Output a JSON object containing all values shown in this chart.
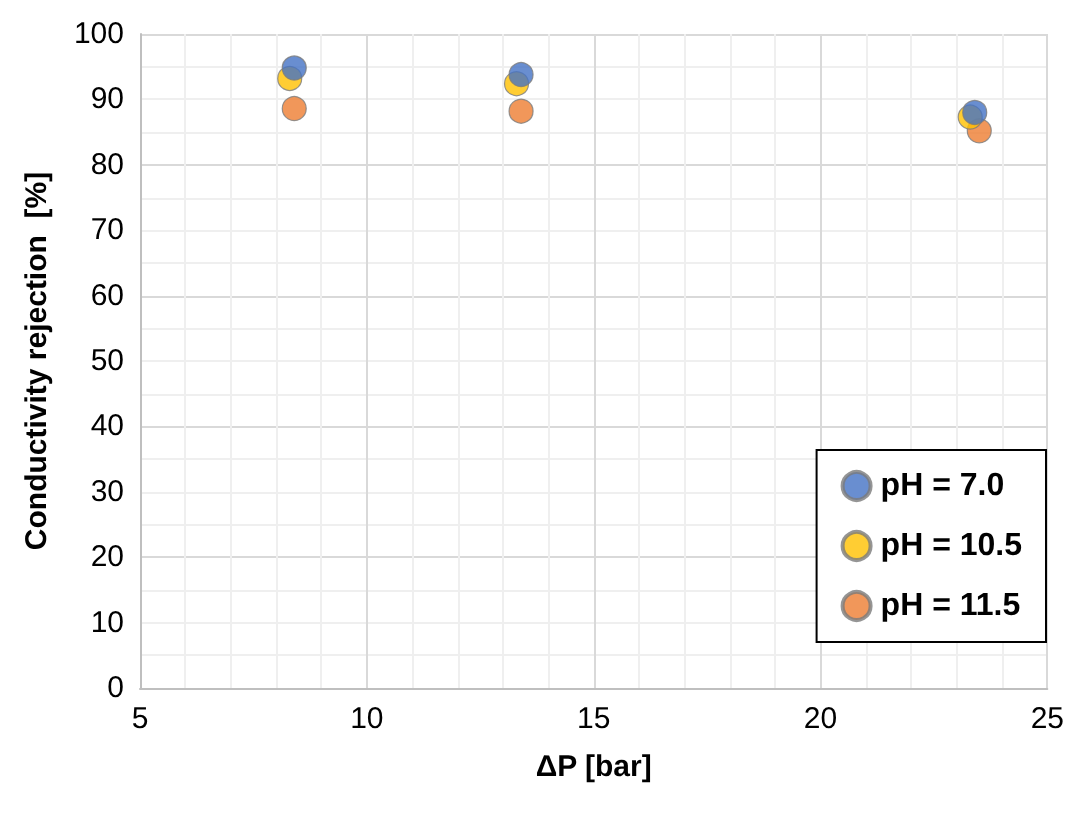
{
  "chart_data": {
    "type": "scatter",
    "xlabel": "ΔP [bar]",
    "ylabel": "Conductivity rejection  [%]",
    "series": [
      {
        "name": "pH = 7.0",
        "color": "#4472c4",
        "x": [
          8.4,
          13.4,
          23.4
        ],
        "values": [
          94.8,
          93.8,
          88.0
        ]
      },
      {
        "name": "pH = 10.5",
        "color": "#ffc000",
        "x": [
          8.3,
          13.3,
          23.3
        ],
        "values": [
          93.2,
          92.4,
          87.3
        ]
      },
      {
        "name": "pH = 11.5",
        "color": "#ed7d31",
        "x": [
          8.4,
          13.4,
          23.5
        ],
        "values": [
          88.6,
          88.2,
          85.2
        ]
      }
    ],
    "xlim": [
      5,
      25
    ],
    "xticks": [
      5,
      10,
      15,
      20,
      25
    ],
    "ylim": [
      0,
      100
    ],
    "yticks": [
      0,
      10,
      20,
      30,
      40,
      50,
      60,
      70,
      80,
      90,
      100
    ],
    "grid": true,
    "legend": "right",
    "marker": "circle"
  }
}
